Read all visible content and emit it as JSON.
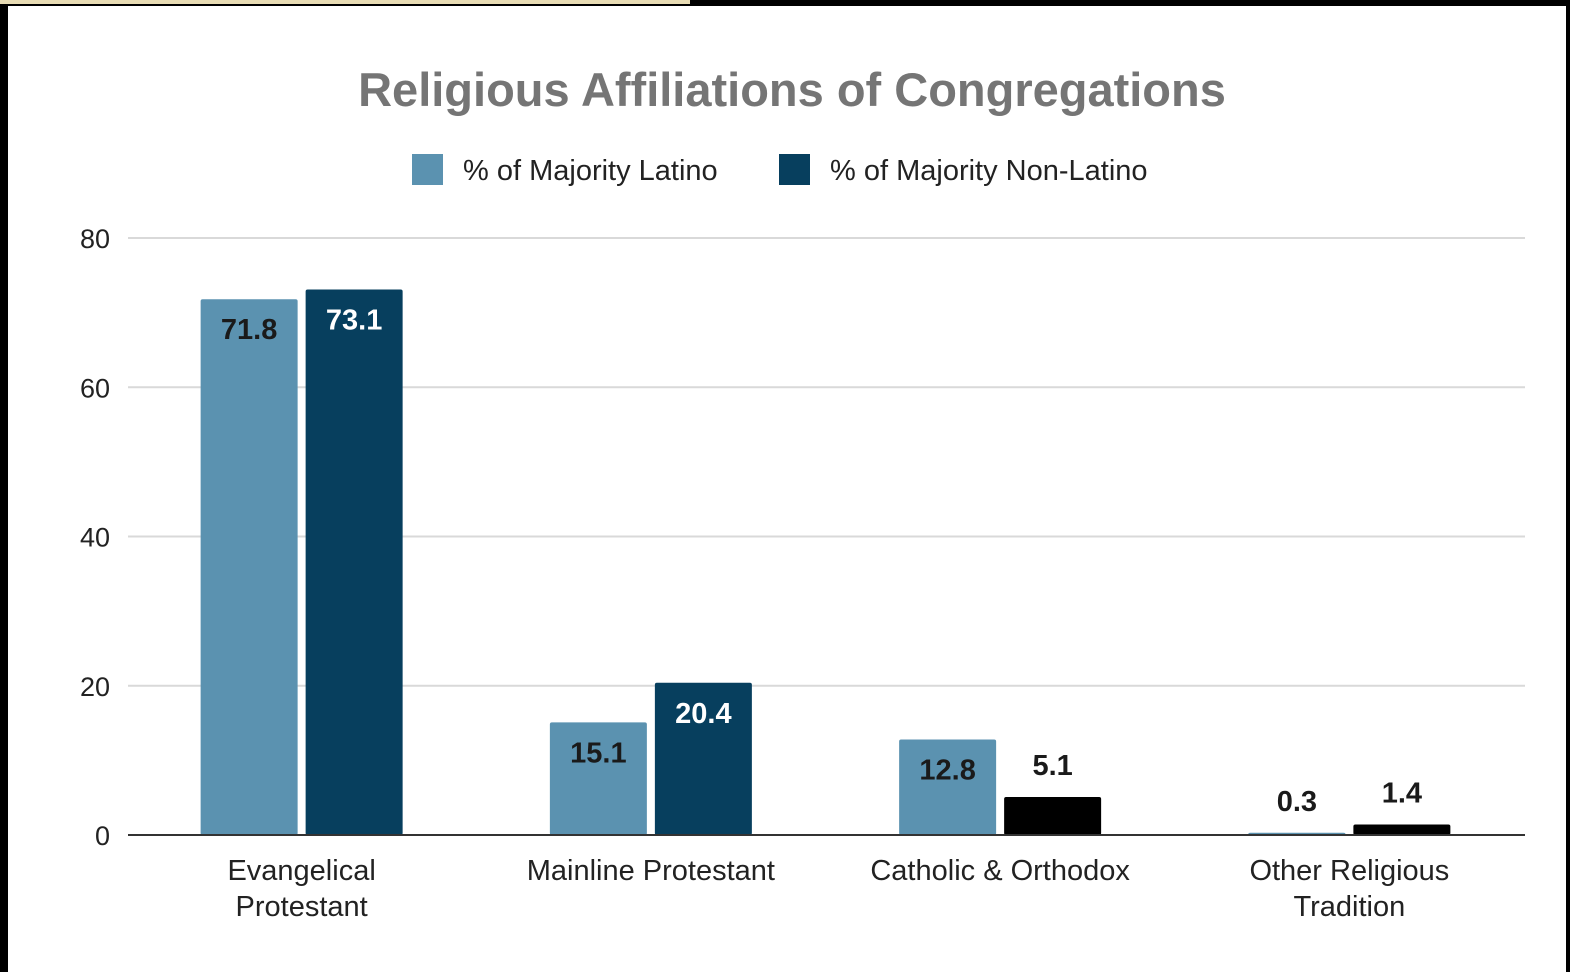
{
  "chart_data": {
    "type": "bar",
    "title": "Religious Affiliations of Congregations",
    "xlabel": "",
    "ylabel": "",
    "categories": [
      [
        "Evangelical",
        "Protestant"
      ],
      [
        "Mainline Protestant"
      ],
      [
        "Catholic & Orthodox"
      ],
      [
        "Other Religious",
        "Tradition"
      ]
    ],
    "series": [
      {
        "name": "% of Majority Latino",
        "color": "#5b92b0",
        "values": [
          71.8,
          15.1,
          12.8,
          0.3
        ],
        "labels": [
          "71.8",
          "15.1",
          "12.8",
          "0.3"
        ]
      },
      {
        "name": "% of Majority Non-Latino",
        "color": "#073f5e",
        "values": [
          73.1,
          20.4,
          5.1,
          1.4
        ],
        "labels": [
          "73.1",
          "20.4",
          "5.1",
          "1.4"
        ],
        "point_colors": [
          "#073f5e",
          "#073f5e",
          "#000000",
          "#000000"
        ]
      }
    ],
    "ylim": [
      0,
      80
    ],
    "yticks": [
      "0",
      "20",
      "40",
      "60",
      "80"
    ],
    "grid": true,
    "legend": "top"
  }
}
